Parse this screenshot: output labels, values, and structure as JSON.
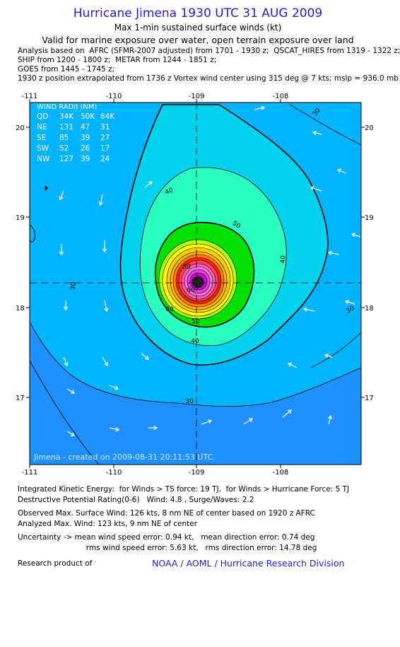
{
  "header": {
    "title": "Hurricane Jimena 1930 UTC 31 AUG 2009",
    "subtitle": "Max 1-min sustained surface winds (kt)",
    "valid_line": "Valid for marine exposure over water, open terrain exposure over land",
    "analysis_lines": [
      "Analysis based on  AFRC (SFMR-2007 adjusted) from 1701 - 1930 z;  QSCAT_HIRES from 1319 - 1322 z;",
      "SHIP from 1200 - 1800 z;  METAR from 1244 - 1851 z;",
      "GOES from 1445 - 1745 z;",
      "1930 z position extrapolated from 1736 z Vortex wind center using 315 deg @ 7 kts; mslp = 936.0 mb"
    ]
  },
  "map": {
    "lon_ticks": [
      "-111",
      "-110",
      "-109",
      "-108"
    ],
    "lat_ticks": [
      "20",
      "19",
      "18",
      "17"
    ],
    "center": {
      "lon": -109.0,
      "lat": 18.25
    },
    "contour_labels": [
      "30",
      "30",
      "30",
      "30",
      "40",
      "40",
      "40",
      "50",
      "50",
      "50",
      "60",
      "60"
    ],
    "credit": "Jimena - created on 2009-08-31 20:11:53 UTC",
    "wind_radii": {
      "title": "WIND RADII (NM)",
      "columns": [
        "QD",
        "34K",
        "50K",
        "64K"
      ],
      "rows": [
        [
          "NE",
          "131",
          "47",
          "31"
        ],
        [
          "SE",
          "85",
          "39",
          "27"
        ],
        [
          "SW",
          "52",
          "26",
          "17"
        ],
        [
          "NW",
          "127",
          "39",
          "24"
        ]
      ]
    },
    "colors": {
      "c25": "#1e90ff",
      "c30": "#00b4ff",
      "c40": "#00d2ee",
      "c50": "#28ffc0",
      "c60": "#00e000",
      "c70": "#b4ff00",
      "c80": "#ffff00",
      "c90": "#ffb400",
      "c100": "#ff2000",
      "c110": "#ff60b0",
      "c120": "#d000d0"
    }
  },
  "footer": {
    "ike": "Integrated Kinetic Energy:  for Winds > TS force: 19 TJ,  for Winds > Hurricane Force: 5 TJ",
    "dpr": "Destructive Potential Rating(0-6)   Wind: 4.8 , Surge/Waves: 2.2",
    "obs": "Observed Max. Surface Wind: 126 kts, 8 nm NE of center based on 1920 z AFRC",
    "ana": "Analyzed Max. Wind: 123 kts, 9 nm NE of center",
    "unc1": "Uncertainty -> mean wind speed error: 0.94 kt,   mean direction error: 0.74 deg",
    "unc2": "                             rms wind speed error: 5.63 kt,   rms direction error: 14.78 deg",
    "research": "Research product of",
    "noaa": "NOAA / AOML / Hurricane Research Division"
  }
}
